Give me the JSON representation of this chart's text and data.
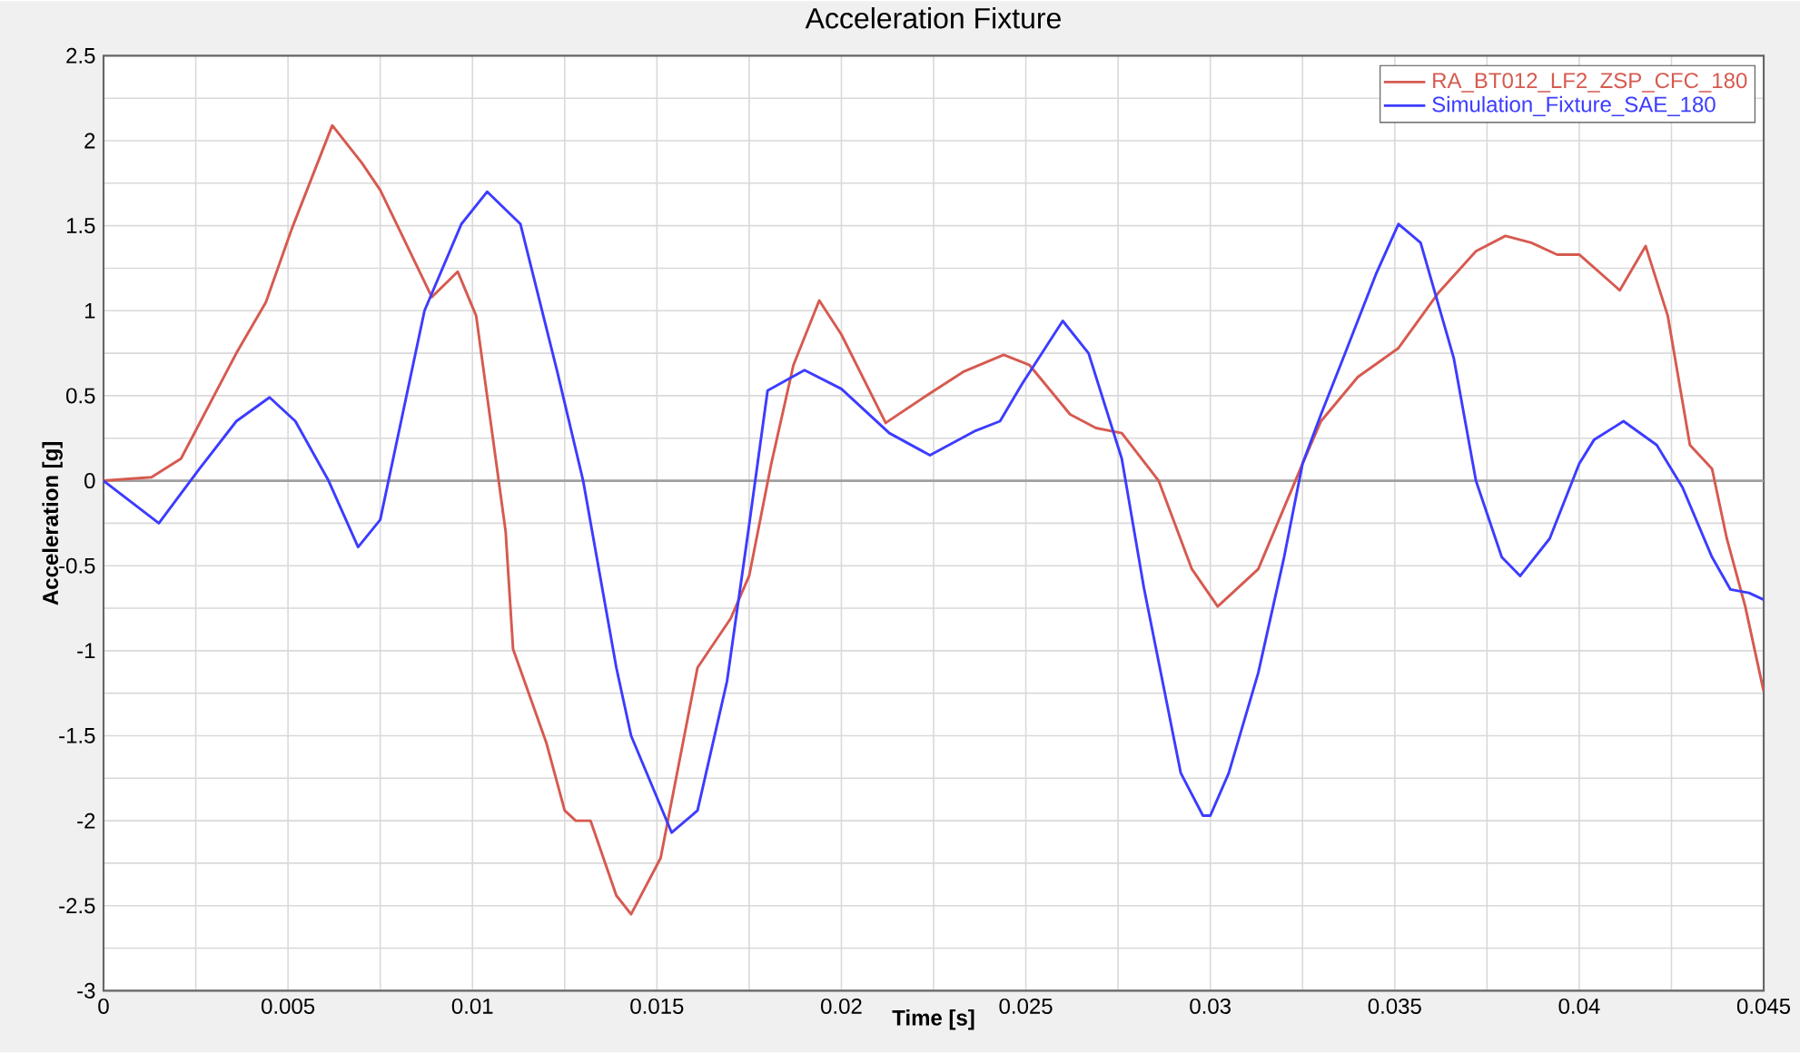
{
  "chart_data": {
    "type": "line",
    "title": "Acceleration Fixture",
    "xlabel": "Time [s]",
    "ylabel": "Acceleration [g]",
    "xlim": [
      0,
      0.045
    ],
    "ylim": [
      -3,
      2.5
    ],
    "xticks": [
      0,
      {
        "value": 0.0025,
        "label": null
      },
      0.005,
      {
        "value": 0.0075,
        "label": null
      },
      0.01,
      {
        "value": 0.0125,
        "label": null
      },
      0.015,
      {
        "value": 0.0175,
        "label": null
      },
      0.02,
      {
        "value": 0.0225,
        "label": null
      },
      0.025,
      {
        "value": 0.0275,
        "label": null
      },
      0.03,
      {
        "value": 0.0325,
        "label": null
      },
      0.035,
      {
        "value": 0.0375,
        "label": null
      },
      0.04,
      {
        "value": 0.0425,
        "label": null
      },
      0.045
    ],
    "yticks": [
      -3,
      {
        "value": -2.75,
        "label": null
      },
      -2.5,
      {
        "value": -2.25,
        "label": null
      },
      -2,
      {
        "value": -1.75,
        "label": null
      },
      -1.5,
      {
        "value": -1.25,
        "label": null
      },
      -1,
      {
        "value": -0.75,
        "label": null
      },
      -0.5,
      {
        "value": -0.25,
        "label": null
      },
      0,
      {
        "value": 0.25,
        "label": null
      },
      0.5,
      {
        "value": 0.75,
        "label": null
      },
      1,
      {
        "value": 1.25,
        "label": null
      },
      1.5,
      {
        "value": 1.75,
        "label": null
      },
      2,
      {
        "value": 2.25,
        "label": null
      },
      2.5
    ],
    "grid": true,
    "legend": "top right",
    "marker": "none",
    "line_style": "solid",
    "ref_lines": [
      {
        "axis": "y",
        "value": 0,
        "color": "#a0a0a0"
      }
    ],
    "series": [
      {
        "name": "RA_BT012_LF2_ZSP_CFC_180",
        "color": "#d65a50",
        "x": [
          0,
          0.0013,
          0.0021,
          0.0036,
          0.0044,
          0.0051,
          0.0062,
          0.007,
          0.0075,
          0.0089,
          0.0096,
          0.0101,
          0.0109,
          0.0111,
          0.012,
          0.0125,
          0.0128,
          0.0132,
          0.0139,
          0.0143,
          0.0151,
          0.0161,
          0.017,
          0.0175,
          0.0181,
          0.0187,
          0.0194,
          0.02,
          0.0212,
          0.0223,
          0.0233,
          0.0244,
          0.0251,
          0.0262,
          0.0269,
          0.0276,
          0.0286,
          0.0295,
          0.0302,
          0.0313,
          0.0325,
          0.033,
          0.034,
          0.0351,
          0.0362,
          0.0372,
          0.038,
          0.0387,
          0.0394,
          0.04,
          0.0411,
          0.0418,
          0.0424,
          0.043,
          0.0436,
          0.044,
          0.0445,
          0.045
        ],
        "values": [
          0,
          0.02,
          0.13,
          0.75,
          1.05,
          1.48,
          2.09,
          1.87,
          1.71,
          1.08,
          1.23,
          0.97,
          -0.3,
          -0.99,
          -1.54,
          -1.94,
          -2.0,
          -2.0,
          -2.44,
          -2.55,
          -2.22,
          -1.1,
          -0.81,
          -0.56,
          0.1,
          0.68,
          1.06,
          0.86,
          0.34,
          0.5,
          0.64,
          0.74,
          0.68,
          0.39,
          0.31,
          0.28,
          0,
          -0.52,
          -0.74,
          -0.52,
          0.1,
          0.35,
          0.61,
          0.78,
          1.11,
          1.35,
          1.44,
          1.4,
          1.33,
          1.33,
          1.12,
          1.38,
          0.97,
          0.21,
          0.07,
          -0.34,
          -0.74,
          -1.24
        ]
      },
      {
        "name": "Simulation_Fixture_SAE_180",
        "color": "#3c3cff",
        "x": [
          0,
          0.0015,
          0.0026,
          0.0036,
          0.0045,
          0.0052,
          0.0061,
          0.0069,
          0.0075,
          0.0087,
          0.0097,
          0.0104,
          0.0113,
          0.0123,
          0.013,
          0.0139,
          0.0143,
          0.0154,
          0.0161,
          0.0169,
          0.0175,
          0.018,
          0.019,
          0.02,
          0.0213,
          0.0224,
          0.0236,
          0.0243,
          0.0249,
          0.026,
          0.0267,
          0.0276,
          0.0282,
          0.0292,
          0.0298,
          0.03,
          0.0305,
          0.0313,
          0.032,
          0.0325,
          0.033,
          0.0336,
          0.0345,
          0.0351,
          0.0357,
          0.0366,
          0.0372,
          0.0379,
          0.0384,
          0.0392,
          0.04,
          0.0404,
          0.0412,
          0.0421,
          0.0428,
          0.0436,
          0.0441,
          0.0446,
          0.045
        ],
        "values": [
          0,
          -0.25,
          0.07,
          0.35,
          0.49,
          0.35,
          0,
          -0.39,
          -0.23,
          1.0,
          1.51,
          1.7,
          1.51,
          0.64,
          0,
          -1.1,
          -1.5,
          -2.07,
          -1.94,
          -1.18,
          -0.26,
          0.53,
          0.65,
          0.54,
          0.28,
          0.15,
          0.29,
          0.35,
          0.57,
          0.94,
          0.75,
          0.13,
          -0.63,
          -1.72,
          -1.97,
          -1.97,
          -1.72,
          -1.13,
          -0.45,
          0.1,
          0.39,
          0.72,
          1.22,
          1.51,
          1.4,
          0.72,
          0,
          -0.45,
          -0.56,
          -0.34,
          0.1,
          0.24,
          0.35,
          0.21,
          -0.04,
          -0.45,
          -0.64,
          -0.66,
          -0.7
        ]
      }
    ]
  }
}
